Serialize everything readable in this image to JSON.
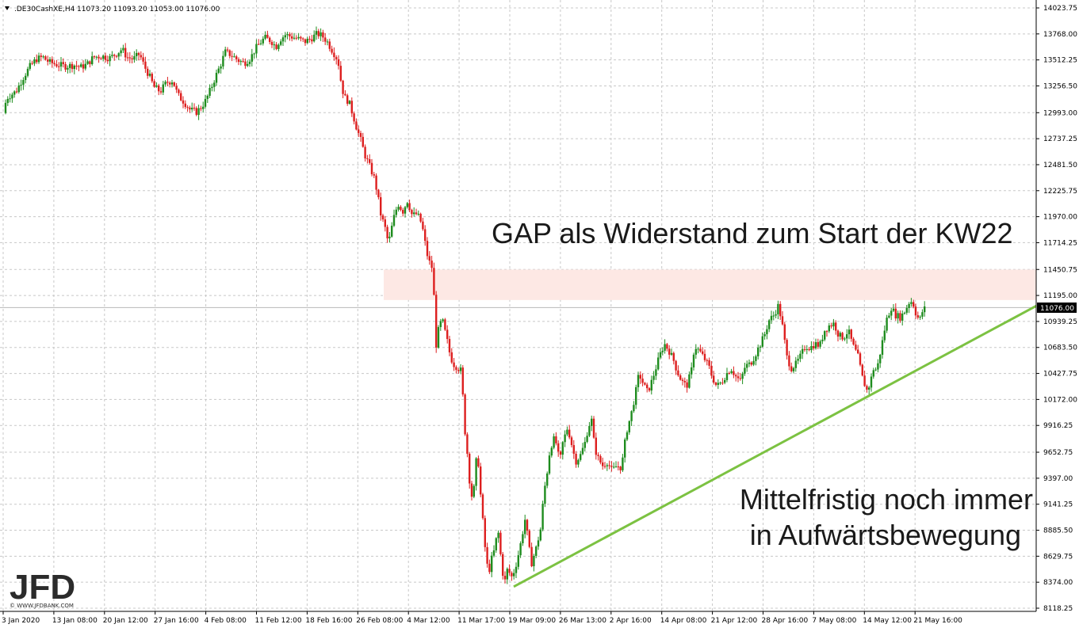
{
  "header": {
    "symbol": ".DE30CashXE,H4",
    "ohlc": "11073.20 11093.20 11053.00 11076.00"
  },
  "branding": {
    "logo": "JFD",
    "sub": "© WWW.JFDBANK.COM"
  },
  "annotations": {
    "gap": "GAP als Widerstand zum Start der KW22",
    "trend_line1": "Mittelfristig noch immer",
    "trend_line2": "in Aufwärtsbewegung"
  },
  "colors": {
    "up": "#1e8c1e",
    "down": "#dd1f1f",
    "trendline": "#7cc242",
    "gap_zone": "#fde8e4",
    "grid": "#c8c8c8",
    "price_tag": "#000000"
  },
  "chart_data": {
    "type": "candlestick",
    "title": ".DE30CashXE,H4",
    "current_price": 11076.0,
    "current_price_label": "11076.00",
    "ylim": [
      8118.25,
      14023.75
    ],
    "y_ticks": [
      "14023.75",
      "13768.00",
      "13512.25",
      "13256.50",
      "12993.00",
      "12737.25",
      "12481.50",
      "12225.75",
      "11970.00",
      "11714.25",
      "11450.75",
      "11195.00",
      "10939.25",
      "10683.50",
      "10427.75",
      "10172.00",
      "9916.25",
      "9652.75",
      "9397.00",
      "9141.25",
      "8885.50",
      "8629.75",
      "8374.00",
      "8118.25"
    ],
    "x_ticks": [
      "3 Jan 2020",
      "13 Jan 08:00",
      "20 Jan 12:00",
      "27 Jan 16:00",
      "4 Feb 08:00",
      "11 Feb 12:00",
      "18 Feb 16:00",
      "26 Feb 08:00",
      "4 Mar 12:00",
      "11 Mar 17:00",
      "19 Mar 09:00",
      "26 Mar 13:00",
      "2 Apr 16:00",
      "14 Apr 08:00",
      "21 Apr 12:00",
      "28 Apr 16:00",
      "7 May 08:00",
      "14 May 12:00",
      "21 May 16:00"
    ],
    "gap_zone": [
      11150,
      11450
    ],
    "trendline": {
      "from_label": "19 Mar 09:00",
      "from_price": 8330,
      "to_label": "21 May 16:00",
      "to_price": 11076
    },
    "close_path": [
      [
        0,
        12990
      ],
      [
        8,
        13150
      ],
      [
        18,
        13200
      ],
      [
        28,
        13350
      ],
      [
        36,
        13450
      ],
      [
        44,
        13520
      ],
      [
        52,
        13540
      ],
      [
        60,
        13490
      ],
      [
        68,
        13470
      ],
      [
        80,
        13450
      ],
      [
        92,
        13460
      ],
      [
        100,
        13440
      ],
      [
        108,
        13470
      ],
      [
        116,
        13540
      ],
      [
        126,
        13550
      ],
      [
        136,
        13530
      ],
      [
        146,
        13580
      ],
      [
        152,
        13620
      ],
      [
        158,
        13540
      ],
      [
        166,
        13520
      ],
      [
        174,
        13570
      ],
      [
        180,
        13450
      ],
      [
        186,
        13360
      ],
      [
        192,
        13250
      ],
      [
        200,
        13200
      ],
      [
        208,
        13290
      ],
      [
        216,
        13310
      ],
      [
        222,
        13170
      ],
      [
        230,
        13100
      ],
      [
        238,
        13020
      ],
      [
        246,
        13000
      ],
      [
        252,
        13050
      ],
      [
        258,
        13120
      ],
      [
        264,
        13230
      ],
      [
        270,
        13350
      ],
      [
        276,
        13460
      ],
      [
        282,
        13590
      ],
      [
        290,
        13560
      ],
      [
        298,
        13510
      ],
      [
        306,
        13480
      ],
      [
        314,
        13530
      ],
      [
        320,
        13620
      ],
      [
        326,
        13680
      ],
      [
        332,
        13730
      ],
      [
        340,
        13700
      ],
      [
        346,
        13640
      ],
      [
        352,
        13720
      ],
      [
        358,
        13760
      ],
      [
        366,
        13740
      ],
      [
        374,
        13720
      ],
      [
        382,
        13690
      ],
      [
        390,
        13720
      ],
      [
        398,
        13770
      ],
      [
        404,
        13750
      ],
      [
        410,
        13700
      ],
      [
        416,
        13620
      ],
      [
        422,
        13540
      ],
      [
        426,
        13450
      ],
      [
        428,
        13300
      ],
      [
        432,
        13150
      ],
      [
        438,
        13100
      ],
      [
        444,
        12950
      ],
      [
        448,
        12840
      ],
      [
        454,
        12700
      ],
      [
        458,
        12580
      ],
      [
        464,
        12470
      ],
      [
        470,
        12350
      ],
      [
        474,
        12200
      ],
      [
        478,
        12000
      ],
      [
        484,
        11850
      ],
      [
        488,
        11700
      ],
      [
        494,
        11940
      ],
      [
        500,
        12100
      ],
      [
        506,
        12020
      ],
      [
        512,
        12130
      ],
      [
        518,
        11980
      ],
      [
        524,
        12000
      ],
      [
        530,
        11900
      ],
      [
        534,
        11720
      ],
      [
        538,
        11550
      ],
      [
        544,
        11450
      ],
      [
        548,
        10700
      ],
      [
        552,
        10900
      ],
      [
        556,
        10950
      ],
      [
        562,
        10750
      ],
      [
        566,
        10600
      ],
      [
        570,
        10520
      ],
      [
        576,
        10480
      ],
      [
        580,
        10450
      ],
      [
        584,
        9900
      ],
      [
        588,
        9600
      ],
      [
        592,
        9200
      ],
      [
        596,
        9300
      ],
      [
        600,
        9700
      ],
      [
        604,
        9250
      ],
      [
        610,
        8700
      ],
      [
        614,
        8450
      ],
      [
        618,
        8600
      ],
      [
        622,
        8700
      ],
      [
        626,
        8900
      ],
      [
        630,
        8600
      ],
      [
        634,
        8350
      ],
      [
        638,
        8500
      ],
      [
        644,
        8420
      ],
      [
        650,
        8580
      ],
      [
        656,
        8800
      ],
      [
        660,
        9000
      ],
      [
        664,
        8800
      ],
      [
        668,
        8550
      ],
      [
        674,
        8700
      ],
      [
        680,
        8900
      ],
      [
        684,
        9250
      ],
      [
        688,
        9450
      ],
      [
        692,
        9700
      ],
      [
        698,
        9800
      ],
      [
        704,
        9550
      ],
      [
        708,
        9750
      ],
      [
        714,
        9900
      ],
      [
        720,
        9700
      ],
      [
        724,
        9560
      ],
      [
        730,
        9620
      ],
      [
        736,
        9750
      ],
      [
        740,
        9900
      ],
      [
        744,
        9980
      ],
      [
        748,
        9700
      ],
      [
        752,
        9600
      ],
      [
        758,
        9520
      ],
      [
        764,
        9560
      ],
      [
        770,
        9470
      ],
      [
        776,
        9520
      ],
      [
        782,
        9500
      ],
      [
        788,
        9850
      ],
      [
        794,
        10020
      ],
      [
        800,
        10250
      ],
      [
        804,
        10430
      ],
      [
        808,
        10350
      ],
      [
        814,
        10250
      ],
      [
        818,
        10300
      ],
      [
        824,
        10450
      ],
      [
        830,
        10600
      ],
      [
        836,
        10720
      ],
      [
        842,
        10650
      ],
      [
        848,
        10550
      ],
      [
        852,
        10450
      ],
      [
        858,
        10350
      ],
      [
        864,
        10300
      ],
      [
        870,
        10450
      ],
      [
        874,
        10700
      ],
      [
        880,
        10650
      ],
      [
        886,
        10580
      ],
      [
        892,
        10500
      ],
      [
        896,
        10400
      ],
      [
        902,
        10300
      ],
      [
        908,
        10340
      ],
      [
        914,
        10420
      ],
      [
        920,
        10480
      ],
      [
        926,
        10400
      ],
      [
        932,
        10350
      ],
      [
        938,
        10500
      ],
      [
        944,
        10520
      ],
      [
        950,
        10600
      ],
      [
        956,
        10700
      ],
      [
        962,
        10800
      ],
      [
        968,
        10950
      ],
      [
        974,
        11000
      ],
      [
        980,
        11100
      ],
      [
        986,
        10850
      ],
      [
        990,
        10600
      ],
      [
        996,
        10480
      ],
      [
        1002,
        10520
      ],
      [
        1008,
        10600
      ],
      [
        1014,
        10700
      ],
      [
        1020,
        10680
      ],
      [
        1026,
        10720
      ],
      [
        1032,
        10700
      ],
      [
        1038,
        10850
      ],
      [
        1044,
        10900
      ],
      [
        1050,
        10920
      ],
      [
        1056,
        10800
      ],
      [
        1062,
        10780
      ],
      [
        1068,
        10850
      ],
      [
        1074,
        10700
      ],
      [
        1080,
        10600
      ],
      [
        1086,
        10380
      ],
      [
        1092,
        10250
      ],
      [
        1096,
        10350
      ],
      [
        1100,
        10480
      ],
      [
        1104,
        10460
      ],
      [
        1110,
        10700
      ],
      [
        1116,
        10950
      ],
      [
        1122,
        11080
      ],
      [
        1128,
        11000
      ],
      [
        1134,
        10980
      ],
      [
        1140,
        11050
      ],
      [
        1146,
        11150
      ],
      [
        1150,
        11110
      ],
      [
        1154,
        11000
      ],
      [
        1158,
        10950
      ],
      [
        1162,
        11050
      ],
      [
        1166,
        11076
      ]
    ]
  }
}
